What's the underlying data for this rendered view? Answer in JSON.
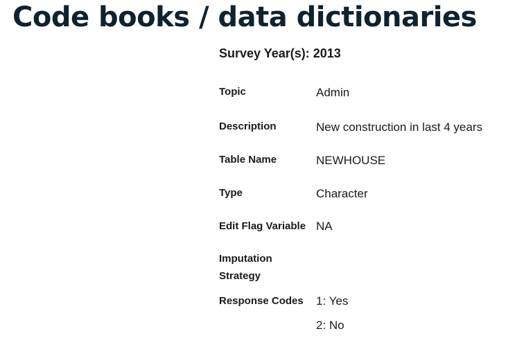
{
  "page": {
    "title": "Code books / data dictionaries"
  },
  "survey": {
    "year_line": "Survey Year(s): 2013"
  },
  "fields": {
    "topic": {
      "label": "Topic",
      "value": "Admin"
    },
    "description": {
      "label": "Description",
      "value": "New construction in last 4 years"
    },
    "table_name": {
      "label": "Table Name",
      "value": "NEWHOUSE"
    },
    "type": {
      "label": "Type",
      "value": "Character"
    },
    "edit_flag": {
      "label": "Edit Flag Variable",
      "value": "NA"
    },
    "imputation": {
      "label_line1": "Imputation",
      "label_line2": "Strategy",
      "value": ""
    },
    "response_codes": {
      "label": "Response Codes",
      "values": [
        "1: Yes",
        "2: No"
      ]
    }
  }
}
